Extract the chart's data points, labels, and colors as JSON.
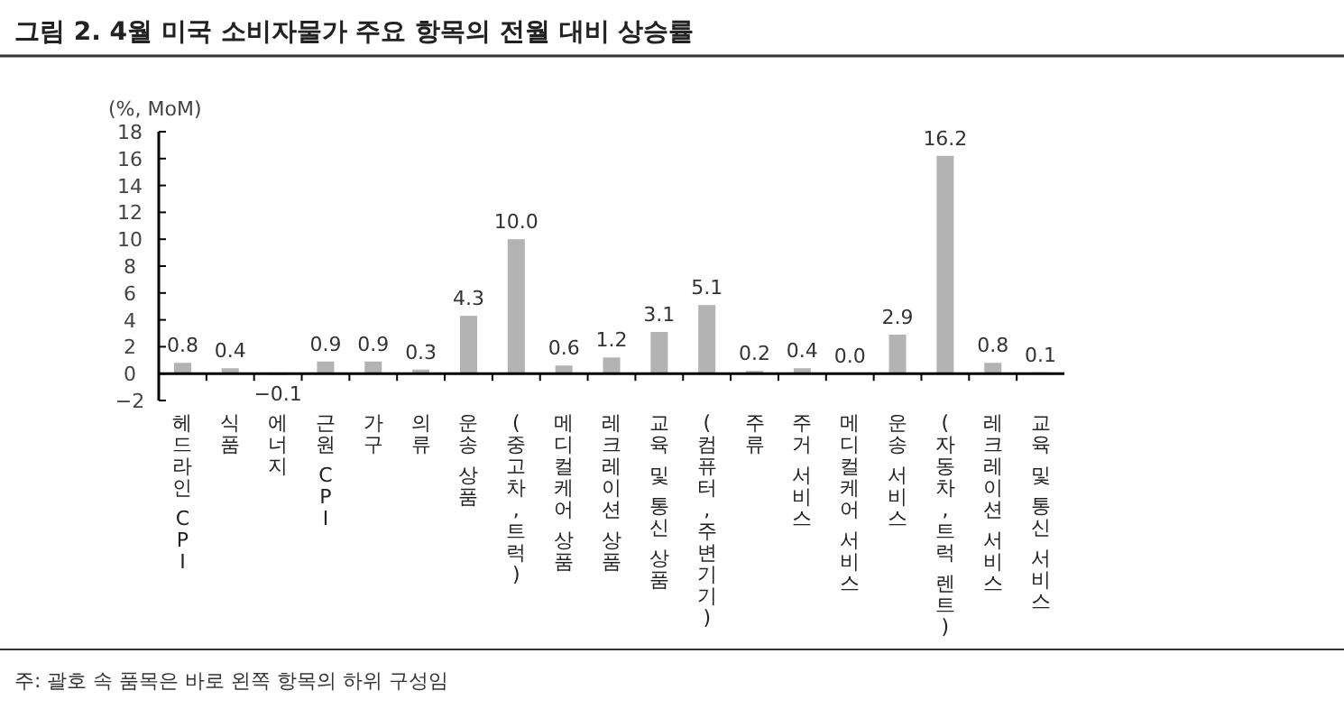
{
  "chart_data": {
    "type": "bar",
    "title": "그림 2. 4월 미국 소비자물가 주요 항목의 전월 대비 상승률",
    "ylabel": "(%, MoM)",
    "categories": [
      "헤드라인 CPI",
      "식품",
      "에너지",
      "근원 CPI",
      "가구",
      "의류",
      "운송 상품",
      "(중고차,트럭)",
      "메디컬케어 상품",
      "레크레이션 상품",
      "교육 및 통신 상품",
      "(컴퓨터,주변기기)",
      "주류",
      "주거 서비스",
      "메디컬케어 서비스",
      "운송 서비스",
      "(자동차,트럭 렌트)",
      "레크레이션 서비스",
      "교육 및 통신 서비스"
    ],
    "values": [
      0.8,
      0.4,
      -0.1,
      0.9,
      0.9,
      0.3,
      4.3,
      10.0,
      0.6,
      1.2,
      3.1,
      5.1,
      0.2,
      0.4,
      0.0,
      2.9,
      16.2,
      0.8,
      0.1
    ],
    "value_labels": [
      "0.8",
      "0.4",
      "−0.1",
      "0.9",
      "0.9",
      "0.3",
      "4.3",
      "10.0",
      "0.6",
      "1.2",
      "3.1",
      "5.1",
      "0.2",
      "0.4",
      "0.0",
      "2.9",
      "16.2",
      "0.8",
      "0.1"
    ],
    "color": "#b3b3b3",
    "ylim": [
      -2,
      18
    ],
    "yticks": [
      {
        "value": -2,
        "label": "−2"
      },
      0,
      2,
      4,
      6,
      8,
      10,
      12,
      14,
      16,
      18
    ],
    "grid": false,
    "annotations": [
      "주: 괄호 속 품목은 바로 왼쪽 항목의 하위 구성임"
    ]
  }
}
